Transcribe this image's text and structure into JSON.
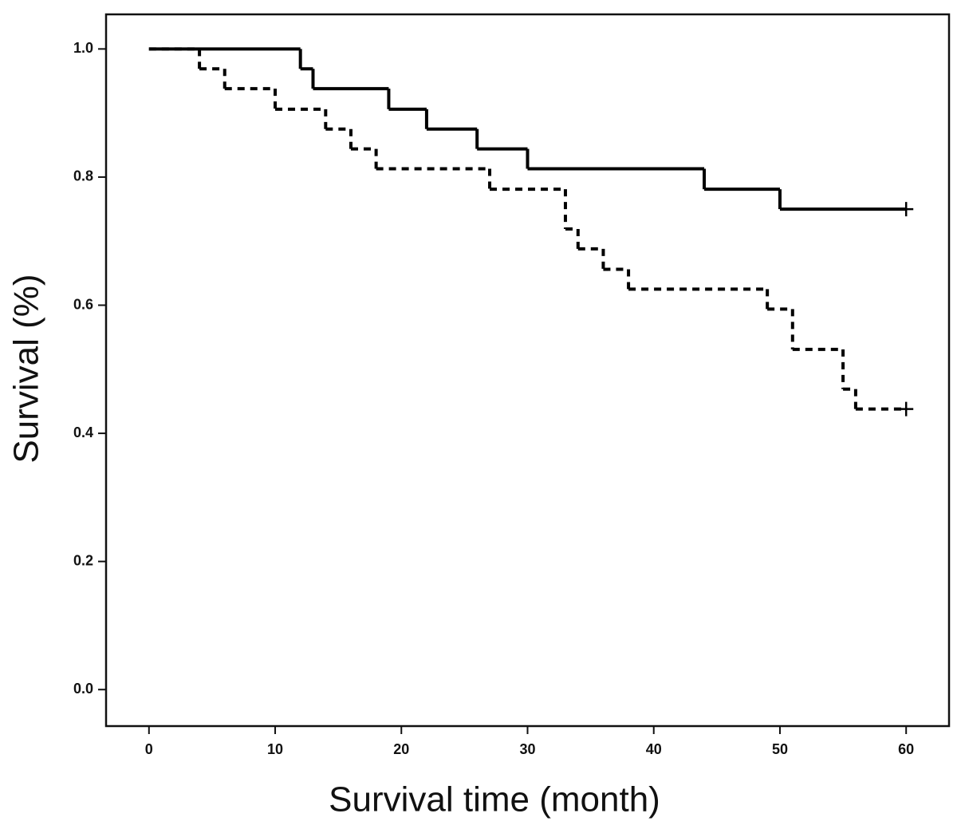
{
  "chart_data": {
    "type": "step",
    "xlabel": "Survival time (month)",
    "ylabel": "Survival (%)",
    "xlim": [
      -3.4,
      63.4
    ],
    "ylim": [
      -0.057,
      1.054
    ],
    "xticks": [
      0,
      10,
      20,
      30,
      40,
      50,
      60
    ],
    "yticks": [
      {
        "value": 0,
        "label": "0.0"
      },
      0.2,
      0.4,
      0.6,
      0.8,
      {
        "value": 1,
        "label": "1.0"
      }
    ],
    "series": [
      {
        "color": "#000000",
        "line_style": "solid",
        "censored_last": true,
        "x": [
          0,
          12,
          13,
          19,
          22,
          26,
          30,
          44,
          50,
          60
        ],
        "values": [
          1.0,
          0.969,
          0.938,
          0.906,
          0.875,
          0.844,
          0.813,
          0.781,
          0.75,
          0.75
        ]
      },
      {
        "color": "#000000",
        "line_style": "dashed",
        "censored_last": true,
        "x": [
          0,
          4,
          6,
          10,
          14,
          16,
          18,
          27,
          33,
          34,
          36,
          38,
          49,
          51,
          55,
          56,
          60
        ],
        "values": [
          1.0,
          0.969,
          0.938,
          0.906,
          0.875,
          0.844,
          0.813,
          0.781,
          0.719,
          0.688,
          0.656,
          0.625,
          0.594,
          0.531,
          0.469,
          0.438,
          0.438
        ]
      }
    ]
  }
}
